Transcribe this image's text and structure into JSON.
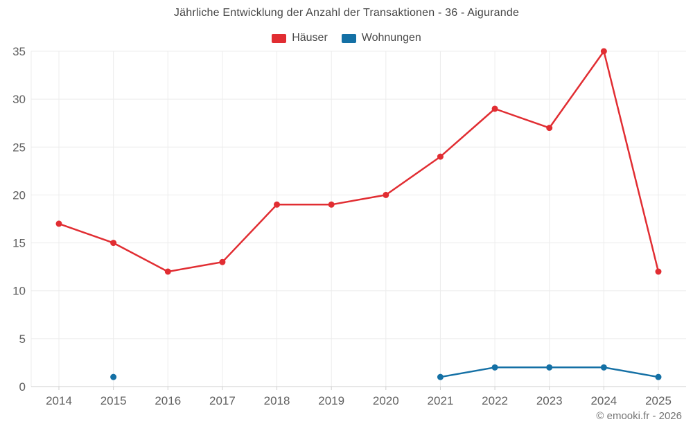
{
  "footer": {
    "copyright": "© emooki.fr - 2026"
  },
  "chart_data": {
    "type": "line",
    "title": "Jährliche Entwicklung der Anzahl der Transaktionen - 36 - Aigurande",
    "xlabel": "",
    "ylabel": "",
    "categories": [
      "2014",
      "2015",
      "2016",
      "2017",
      "2018",
      "2019",
      "2020",
      "2021",
      "2022",
      "2023",
      "2024",
      "2025"
    ],
    "series": [
      {
        "name": "Häuser",
        "color": "#e12d32",
        "values": [
          17,
          15,
          12,
          13,
          19,
          19,
          20,
          24,
          29,
          27,
          35,
          12
        ]
      },
      {
        "name": "Wohnungen",
        "color": "#1470a5",
        "values": [
          null,
          1,
          null,
          null,
          null,
          null,
          null,
          1,
          2,
          2,
          2,
          1
        ]
      }
    ],
    "ylim": [
      0,
      35
    ],
    "y_tick_step": 5,
    "y_tick_labels": [
      "0",
      "5",
      "10",
      "15",
      "20",
      "25",
      "30",
      "35"
    ],
    "grid": true,
    "legend_position": "top",
    "grid_color": "#ececec",
    "axis_line_color": "#cfcfcf",
    "tick_label_color": "#616161"
  }
}
